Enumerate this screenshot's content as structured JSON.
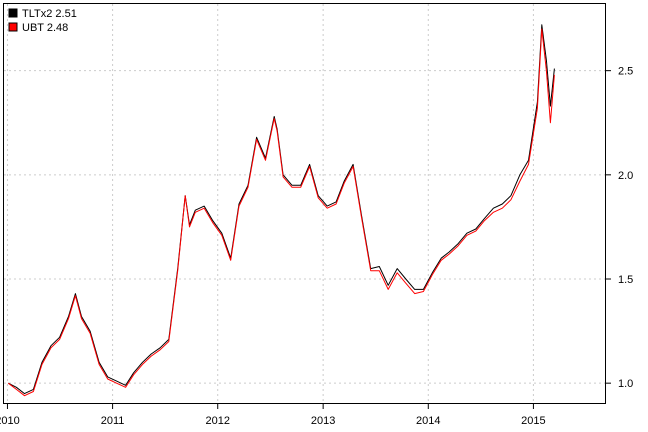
{
  "chart_data": {
    "type": "line",
    "title": "",
    "xlabel": "",
    "ylabel": "",
    "x_tick_labels": [
      "2010",
      "2011",
      "2012",
      "2013",
      "2014",
      "2015"
    ],
    "y_tick_labels": [
      "1.0",
      "1.5",
      "2.0",
      "2.5"
    ],
    "y_ticks": [
      1.0,
      1.5,
      2.0,
      2.5
    ],
    "xlim": [
      "2009-12-20",
      "2015-09-10"
    ],
    "ylim": [
      0.9,
      2.82
    ],
    "y_axis_side": "right",
    "grid": true,
    "legend_position": "top-left",
    "series": [
      {
        "name": "TLTx2 2.51",
        "color": "#000000",
        "x": [
          "2010-01-04",
          "2010-02-01",
          "2010-03-01",
          "2010-04-01",
          "2010-05-01",
          "2010-06-01",
          "2010-07-01",
          "2010-08-01",
          "2010-08-25",
          "2010-09-15",
          "2010-10-15",
          "2010-11-15",
          "2010-12-15",
          "2011-01-15",
          "2011-02-15",
          "2011-03-15",
          "2011-04-15",
          "2011-05-15",
          "2011-06-15",
          "2011-07-15",
          "2011-08-15",
          "2011-09-10",
          "2011-09-25",
          "2011-10-15",
          "2011-11-15",
          "2011-12-15",
          "2012-01-15",
          "2012-02-15",
          "2012-03-15",
          "2012-04-15",
          "2012-05-15",
          "2012-06-15",
          "2012-07-15",
          "2012-07-25",
          "2012-08-15",
          "2012-09-15",
          "2012-10-15",
          "2012-11-15",
          "2012-12-15",
          "2013-01-15",
          "2013-02-15",
          "2013-03-15",
          "2013-04-15",
          "2013-05-15",
          "2013-06-15",
          "2013-07-15",
          "2013-08-15",
          "2013-09-15",
          "2013-10-15",
          "2013-11-15",
          "2013-12-15",
          "2014-01-15",
          "2014-02-15",
          "2014-03-15",
          "2014-04-15",
          "2014-05-15",
          "2014-06-15",
          "2014-07-15",
          "2014-08-15",
          "2014-09-15",
          "2014-10-15",
          "2014-11-15",
          "2014-12-15",
          "2015-01-15",
          "2015-01-30",
          "2015-02-15",
          "2015-03-01",
          "2015-03-15"
        ],
        "values": [
          1.0,
          0.98,
          0.95,
          0.97,
          1.1,
          1.18,
          1.22,
          1.32,
          1.43,
          1.32,
          1.25,
          1.1,
          1.03,
          1.01,
          0.99,
          1.05,
          1.1,
          1.14,
          1.17,
          1.21,
          1.55,
          1.9,
          1.76,
          1.83,
          1.85,
          1.78,
          1.72,
          1.6,
          1.86,
          1.95,
          2.18,
          2.08,
          2.28,
          2.22,
          2.0,
          1.95,
          1.95,
          2.05,
          1.9,
          1.85,
          1.87,
          1.97,
          2.05,
          1.8,
          1.55,
          1.56,
          1.47,
          1.55,
          1.5,
          1.45,
          1.45,
          1.53,
          1.6,
          1.63,
          1.67,
          1.72,
          1.74,
          1.79,
          1.84,
          1.86,
          1.9,
          2.0,
          2.07,
          2.35,
          2.72,
          2.55,
          2.33,
          2.51
        ]
      },
      {
        "name": "UBT 2.48",
        "color": "#ff0000",
        "x": [
          "2010-01-04",
          "2010-02-01",
          "2010-03-01",
          "2010-04-01",
          "2010-05-01",
          "2010-06-01",
          "2010-07-01",
          "2010-08-01",
          "2010-08-25",
          "2010-09-15",
          "2010-10-15",
          "2010-11-15",
          "2010-12-15",
          "2011-01-15",
          "2011-02-15",
          "2011-03-15",
          "2011-04-15",
          "2011-05-15",
          "2011-06-15",
          "2011-07-15",
          "2011-08-15",
          "2011-09-10",
          "2011-09-25",
          "2011-10-15",
          "2011-11-15",
          "2011-12-15",
          "2012-01-15",
          "2012-02-15",
          "2012-03-15",
          "2012-04-15",
          "2012-05-15",
          "2012-06-15",
          "2012-07-15",
          "2012-07-25",
          "2012-08-15",
          "2012-09-15",
          "2012-10-15",
          "2012-11-15",
          "2012-12-15",
          "2013-01-15",
          "2013-02-15",
          "2013-03-15",
          "2013-04-15",
          "2013-05-15",
          "2013-06-15",
          "2013-07-15",
          "2013-08-15",
          "2013-09-15",
          "2013-10-15",
          "2013-11-15",
          "2013-12-15",
          "2014-01-15",
          "2014-02-15",
          "2014-03-15",
          "2014-04-15",
          "2014-05-15",
          "2014-06-15",
          "2014-07-15",
          "2014-08-15",
          "2014-09-15",
          "2014-10-15",
          "2014-11-15",
          "2014-12-15",
          "2015-01-15",
          "2015-01-30",
          "2015-02-15",
          "2015-03-01",
          "2015-03-15"
        ],
        "values": [
          1.0,
          0.97,
          0.94,
          0.96,
          1.09,
          1.17,
          1.21,
          1.31,
          1.42,
          1.31,
          1.24,
          1.09,
          1.02,
          1.0,
          0.98,
          1.04,
          1.09,
          1.13,
          1.16,
          1.2,
          1.54,
          1.9,
          1.75,
          1.82,
          1.84,
          1.77,
          1.71,
          1.59,
          1.85,
          1.94,
          2.17,
          2.07,
          2.27,
          2.21,
          1.99,
          1.94,
          1.94,
          2.04,
          1.89,
          1.84,
          1.86,
          1.96,
          2.04,
          1.79,
          1.54,
          1.54,
          1.45,
          1.53,
          1.48,
          1.43,
          1.44,
          1.52,
          1.59,
          1.62,
          1.66,
          1.71,
          1.73,
          1.78,
          1.82,
          1.84,
          1.88,
          1.97,
          2.05,
          2.32,
          2.7,
          2.5,
          2.25,
          2.48
        ]
      }
    ]
  }
}
